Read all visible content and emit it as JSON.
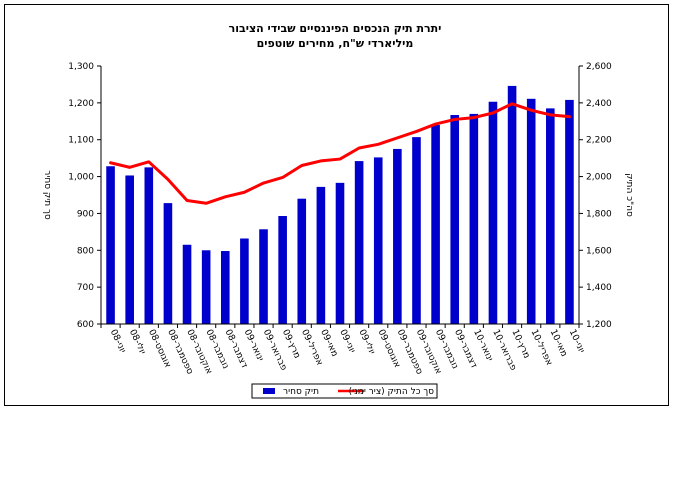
{
  "chart_data": {
    "type": "bar+line",
    "title": "יתרת תיק הנכסים הפיננסיים שבידי הציבור",
    "subtitle": "מיליארדי ש\"ח, מחירים שוטפים",
    "categories": [
      "יוני-08",
      "יולי-08",
      "אוגוסט-08",
      "ספטמבר-08",
      "אוקטובר-08",
      "נובמבר-08",
      "דצמבר-08",
      "ינואר-09",
      "פברואר-09",
      "מרץ-09",
      "אפריל-09",
      "מאי-09",
      "יוני-09",
      "יולי-09",
      "אוגוסט-09",
      "ספטמבר-09",
      "אוקטובר-09",
      "נובמבר-09",
      "דצמבר-09",
      "ינואר-10",
      "פברואר-10",
      "מרץ-10",
      "אפריל-10",
      "מאי-10",
      "יוני-10"
    ],
    "series": [
      {
        "name": "תיק סחיר",
        "type": "bar",
        "axis": "left",
        "color": "#0000cc",
        "values": [
          1028,
          1003,
          1025,
          928,
          815,
          800,
          798,
          832,
          857,
          893,
          940,
          972,
          983,
          1042,
          1052,
          1075,
          1107,
          1140,
          1167,
          1170,
          1203,
          1246,
          1211,
          1185,
          1208
        ]
      },
      {
        "name": "סך כל התיק (ציר ימני)",
        "type": "line",
        "axis": "right",
        "color": "#ff0000",
        "values": [
          2075,
          2050,
          2080,
          1985,
          1870,
          1855,
          1890,
          1915,
          1965,
          1995,
          2060,
          2085,
          2095,
          2155,
          2175,
          2210,
          2245,
          2285,
          2310,
          2320,
          2345,
          2395,
          2360,
          2335,
          2325
        ]
      }
    ],
    "ylabel_left": "סך תיק סחיר",
    "ylabel_right": "סה\"כ התיק",
    "ylim_left": [
      600,
      1300
    ],
    "ylim_right": [
      1200,
      2600
    ],
    "yticks_left": [
      "600",
      "700",
      "800",
      "900",
      "1,000",
      "1,100",
      "1,200",
      "1,300"
    ],
    "yticks_right": [
      "1,200",
      "1,400",
      "1,600",
      "1,800",
      "2,000",
      "2,200",
      "2,400",
      "2,600"
    ],
    "grid": false,
    "legend_position": "bottom"
  }
}
